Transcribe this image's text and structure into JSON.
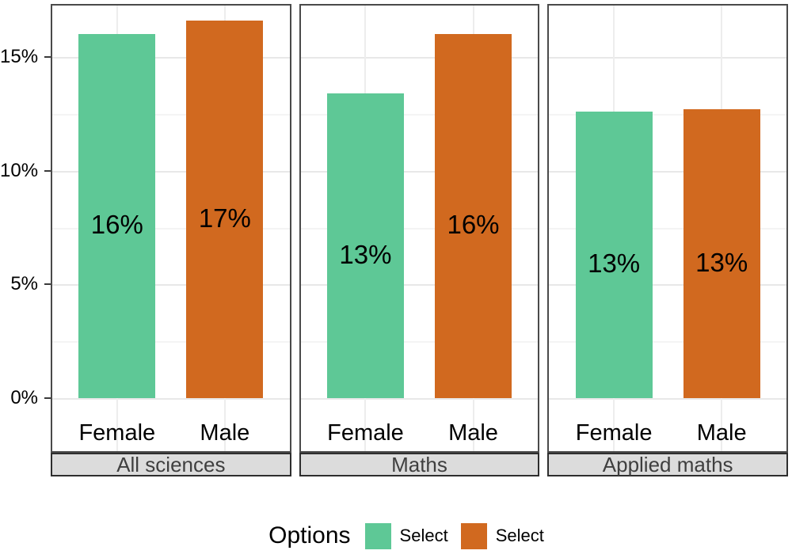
{
  "chart_data": {
    "type": "bar",
    "categories": [
      "Female",
      "Male"
    ],
    "series": [
      {
        "name": "Female",
        "color": "#5ec896"
      },
      {
        "name": "Male",
        "color": "#d1691f"
      }
    ],
    "facets": [
      {
        "label": "All sciences",
        "values": [
          16.0,
          16.6
        ],
        "bar_labels": [
          "16%",
          "17%"
        ]
      },
      {
        "label": "Maths",
        "values": [
          13.4,
          16.0
        ],
        "bar_labels": [
          "13%",
          "16%"
        ]
      },
      {
        "label": "Applied maths",
        "values": [
          12.6,
          12.7
        ],
        "bar_labels": [
          "13%",
          "13%"
        ]
      }
    ],
    "y_axis": {
      "ticks": [
        0,
        5,
        10,
        15
      ],
      "tick_labels": [
        "0%",
        "5%",
        "10%",
        "15%"
      ],
      "minor_ticks": [
        2.5,
        7.5,
        12.5
      ],
      "ylim": [
        0,
        17.3
      ],
      "unit": "percent"
    },
    "grid": "on",
    "legend_position": "bottom",
    "legend": {
      "title": "Options",
      "entries": [
        {
          "label": "Select",
          "color": "#5ec896"
        },
        {
          "label": "Select",
          "color": "#d1691f"
        }
      ]
    }
  },
  "colors": {
    "female_bar": "#5ec896",
    "male_bar": "#d1691f",
    "strip_background": "#dcdcdc"
  }
}
